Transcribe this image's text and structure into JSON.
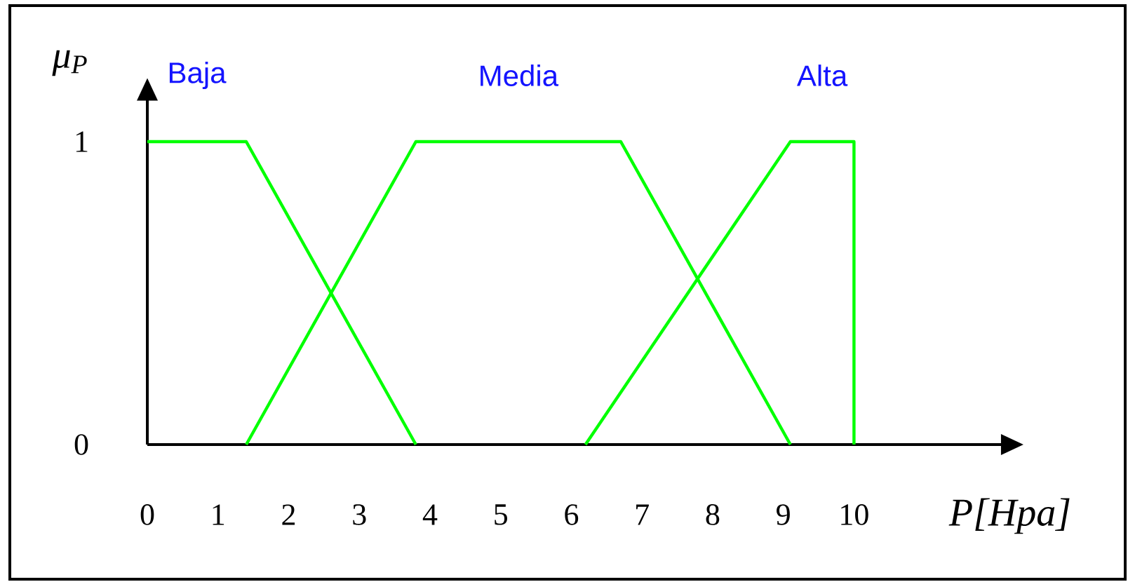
{
  "chart_data": {
    "type": "line",
    "xlabel": "P[Hpa]",
    "ylabel": "μ$_{P}$",
    "xlim": [
      0,
      12.1
    ],
    "ylim": [
      0,
      1.14
    ],
    "xticks": [
      0,
      1,
      2,
      3,
      4,
      5,
      6,
      7,
      8,
      9,
      10
    ],
    "yticks": [
      0,
      1
    ],
    "line_style": "solid",
    "series": [
      {
        "name": "Baja",
        "color": "#00ff00",
        "x": [
          0,
          1.4,
          3.8
        ],
        "values": [
          1,
          1,
          0
        ]
      },
      {
        "name": "Media",
        "color": "#00ff00",
        "x": [
          1.4,
          3.8,
          6.7,
          9.1
        ],
        "values": [
          0,
          1,
          1,
          0
        ]
      },
      {
        "name": "Alta",
        "color": "#00ff00",
        "x": [
          6.2,
          9.1,
          10,
          10
        ],
        "values": [
          0,
          1,
          1,
          0
        ]
      }
    ]
  }
}
